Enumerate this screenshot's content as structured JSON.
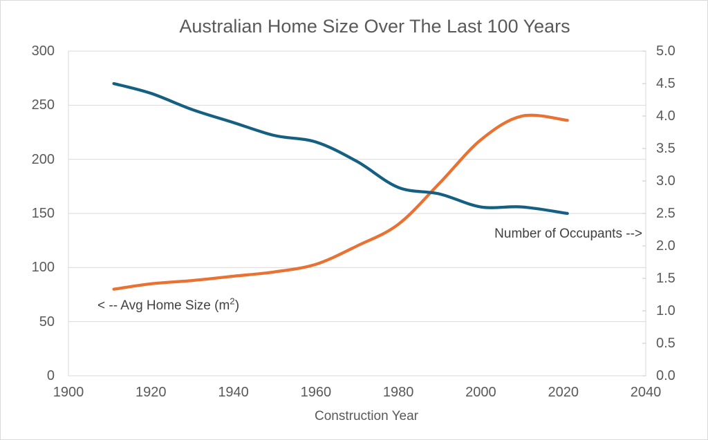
{
  "title": "Australian Home Size Over The Last 100 Years",
  "x_axis": {
    "label": "Construction Year",
    "ticks": [
      "1900",
      "1920",
      "1940",
      "1960",
      "1980",
      "2000",
      "2020",
      "2040"
    ]
  },
  "y_axis_left": {
    "ticks": [
      "0",
      "50",
      "100",
      "150",
      "200",
      "250",
      "300"
    ]
  },
  "y_axis_right": {
    "ticks": [
      "0.0",
      "0.5",
      "1.0",
      "1.5",
      "2.0",
      "2.5",
      "3.0",
      "3.5",
      "4.0",
      "4.5",
      "5.0"
    ]
  },
  "annotations": {
    "home_size": {
      "prefix": "< -- Avg Home Size (m",
      "sup": "2",
      "suffix": ")"
    },
    "occupants": {
      "text": "Number of Occupants -->"
    }
  },
  "colors": {
    "home_size_line": "#E97132",
    "occupants_line": "#156082",
    "grid": "#D9D9D9",
    "axis_tick": "#C6C6C6",
    "text": "#595959",
    "annotation_text": "#404040",
    "background": "#FFFFFF"
  },
  "chart_data": {
    "type": "line",
    "title": "Australian Home Size Over The Last 100 Years",
    "xlabel": "Construction Year",
    "x_range": [
      1900,
      2040
    ],
    "x_tick_step": 20,
    "y_left": {
      "label": "Avg Home Size (m2)",
      "range": [
        0,
        300
      ],
      "tick_step": 50
    },
    "y_right": {
      "label": "Number of Occupants",
      "range": [
        0,
        5
      ],
      "tick_step": 0.5
    },
    "grid": "horizontal",
    "legend": "none",
    "x": [
      1911,
      1920,
      1930,
      1940,
      1950,
      1960,
      1970,
      1980,
      1990,
      2000,
      2010,
      2021
    ],
    "series": [
      {
        "name": "Avg Home Size (m2)",
        "axis": "left",
        "color": "#E97132",
        "smooth": true,
        "values": [
          80,
          85,
          88,
          92,
          96,
          103,
          120,
          140,
          178,
          218,
          240,
          236
        ]
      },
      {
        "name": "Number of Occupants",
        "axis": "right",
        "color": "#156082",
        "smooth": true,
        "values": [
          4.5,
          4.35,
          4.1,
          3.9,
          3.7,
          3.6,
          3.3,
          2.9,
          2.8,
          2.6,
          2.6,
          2.5
        ]
      }
    ]
  }
}
